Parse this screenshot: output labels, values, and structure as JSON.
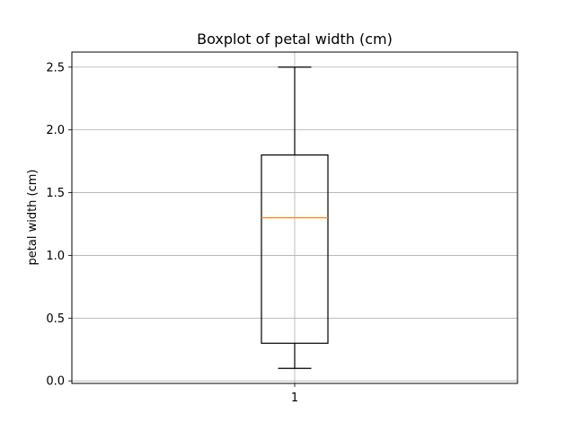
{
  "chart_data": {
    "type": "box",
    "title": "Boxplot of petal width (cm)",
    "xlabel": "",
    "ylabel": "petal width (cm)",
    "categories": [
      "1"
    ],
    "boxes": [
      {
        "category": "1",
        "whisker_low": 0.1,
        "q1": 0.3,
        "median": 1.3,
        "q3": 1.8,
        "whisker_high": 2.5
      }
    ],
    "ylim": [
      -0.02,
      2.62
    ],
    "yticks": [
      0.0,
      0.5,
      1.0,
      1.5,
      2.0,
      2.5
    ],
    "ytick_labels": [
      "0.0",
      "0.5",
      "1.0",
      "1.5",
      "2.0",
      "2.5"
    ],
    "grid": true,
    "colors": {
      "median": "#ff7f0e",
      "box": "#000000",
      "grid": "#b0b0b0"
    }
  }
}
